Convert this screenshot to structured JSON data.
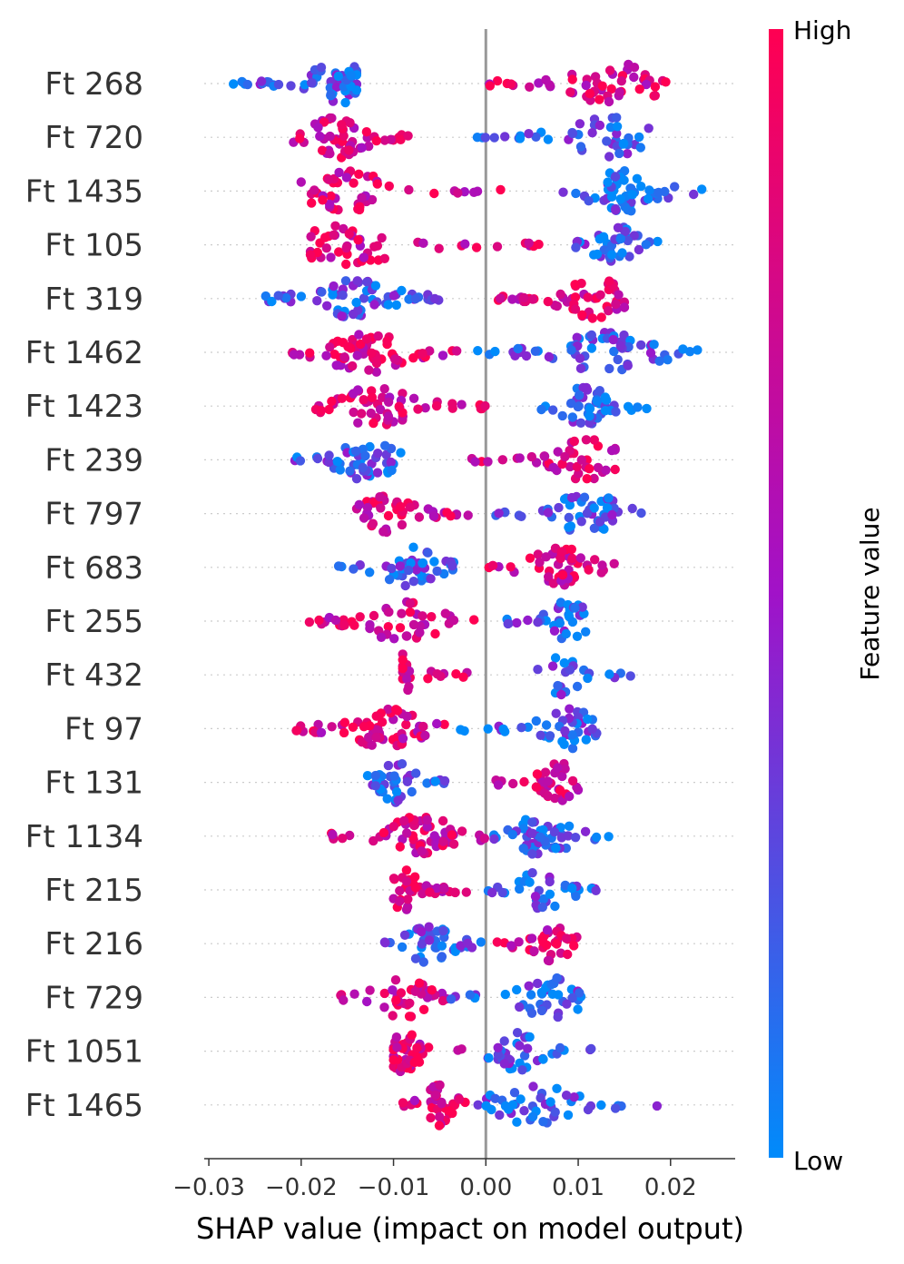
{
  "chart_data": {
    "type": "scatter",
    "subtype": "shap_beeswarm",
    "xlabel": "SHAP value (impact on model output)",
    "xlim": [
      -0.0305,
      0.027
    ],
    "xticks": [
      {
        "value": -0.03,
        "label": "−0.03"
      },
      {
        "value": -0.02,
        "label": "−0.02"
      },
      {
        "value": -0.01,
        "label": "−0.01"
      },
      {
        "value": 0.0,
        "label": "0.00"
      },
      {
        "value": 0.01,
        "label": "0.01"
      },
      {
        "value": 0.02,
        "label": "0.02"
      }
    ],
    "colorbar": {
      "title": "Feature value",
      "high_label": "High",
      "low_label": "Low",
      "high_color": "#ff0052",
      "low_color": "#008bfb"
    },
    "features": [
      {
        "name": "Ft 268",
        "neg": [
          -0.029,
          -0.014,
          "low",
          62
        ],
        "pos": [
          0.0,
          0.022,
          "high",
          52
        ],
        "peaks": [
          -0.016,
          0.014
        ]
      },
      {
        "name": "Ft 720",
        "neg": [
          -0.021,
          -0.007,
          "high",
          52
        ],
        "pos": [
          -0.002,
          0.018,
          "low",
          44
        ],
        "peaks": [
          -0.016,
          0.013
        ]
      },
      {
        "name": "Ft 1435",
        "neg": [
          -0.02,
          0.002,
          "high",
          46
        ],
        "pos": [
          0.008,
          0.024,
          "low",
          56
        ],
        "peaks": [
          -0.015,
          0.015
        ]
      },
      {
        "name": "Ft 105",
        "neg": [
          -0.019,
          0.006,
          "high",
          50
        ],
        "pos": [
          0.009,
          0.019,
          "low",
          40
        ],
        "peaks": [
          -0.015,
          0.014
        ]
      },
      {
        "name": "Ft 319",
        "neg": [
          -0.024,
          -0.005,
          "low",
          64
        ],
        "pos": [
          0.0,
          0.015,
          "high",
          56
        ],
        "peaks": [
          -0.014,
          0.012
        ]
      },
      {
        "name": "Ft 1462",
        "neg": [
          -0.021,
          -0.003,
          "high",
          66
        ],
        "pos": [
          -0.001,
          0.023,
          "low",
          64
        ],
        "peaks": [
          -0.013,
          0.013
        ]
      },
      {
        "name": "Ft 1423",
        "neg": [
          -0.019,
          0.0,
          "high",
          56
        ],
        "pos": [
          0.006,
          0.018,
          "low",
          44
        ],
        "peaks": [
          -0.012,
          0.011
        ]
      },
      {
        "name": "Ft 239",
        "neg": [
          -0.021,
          -0.008,
          "low",
          48
        ],
        "pos": [
          -0.002,
          0.014,
          "high",
          44
        ],
        "peaks": [
          -0.013,
          0.011
        ]
      },
      {
        "name": "Ft 797",
        "neg": [
          -0.014,
          0.0,
          "high",
          42
        ],
        "pos": [
          0.001,
          0.017,
          "low",
          48
        ],
        "peaks": [
          -0.011,
          0.011
        ]
      },
      {
        "name": "Ft 683",
        "neg": [
          -0.016,
          -0.003,
          "low",
          46
        ],
        "pos": [
          0.0,
          0.014,
          "high",
          44
        ],
        "peaks": [
          -0.008,
          0.008
        ]
      },
      {
        "name": "Ft 255",
        "neg": [
          -0.02,
          -0.001,
          "high",
          48
        ],
        "pos": [
          0.001,
          0.011,
          "low",
          36
        ],
        "peaks": [
          -0.009,
          0.009
        ]
      },
      {
        "name": "Ft 432",
        "neg": [
          -0.009,
          -0.002,
          "high",
          22
        ],
        "pos": [
          0.005,
          0.016,
          "low",
          22
        ],
        "peaks": [
          -0.009,
          0.008
        ]
      },
      {
        "name": "Ft 97",
        "neg": [
          -0.021,
          -0.003,
          "high",
          60
        ],
        "pos": [
          -0.003,
          0.012,
          "low",
          44
        ],
        "peaks": [
          -0.011,
          0.009
        ]
      },
      {
        "name": "Ft 131",
        "neg": [
          -0.013,
          -0.003,
          "low",
          38
        ],
        "pos": [
          0.001,
          0.01,
          "high",
          36
        ],
        "peaks": [
          -0.01,
          0.008
        ]
      },
      {
        "name": "Ft 1134",
        "neg": [
          -0.017,
          0.0,
          "high",
          62
        ],
        "pos": [
          0.0,
          0.014,
          "low",
          52
        ],
        "peaks": [
          -0.007,
          0.006
        ]
      },
      {
        "name": "Ft 215",
        "neg": [
          -0.01,
          -0.002,
          "high",
          36
        ],
        "pos": [
          0.0,
          0.012,
          "low",
          36
        ],
        "peaks": [
          -0.009,
          0.006
        ]
      },
      {
        "name": "Ft 216",
        "neg": [
          -0.011,
          0.0,
          "low",
          42
        ],
        "pos": [
          0.0,
          0.011,
          "high",
          34
        ],
        "peaks": [
          -0.006,
          0.007
        ]
      },
      {
        "name": "Ft 729",
        "neg": [
          -0.016,
          -0.004,
          "high",
          40
        ],
        "pos": [
          -0.004,
          0.011,
          "low",
          40
        ],
        "peaks": [
          -0.009,
          0.007
        ]
      },
      {
        "name": "Ft 1051",
        "neg": [
          -0.01,
          -0.001,
          "high",
          44
        ],
        "pos": [
          0.0,
          0.012,
          "low",
          40
        ],
        "peaks": [
          -0.009,
          0.003
        ]
      },
      {
        "name": "Ft 1465",
        "neg": [
          -0.009,
          -0.002,
          "high",
          34
        ],
        "pos": [
          -0.002,
          0.019,
          "low",
          44
        ],
        "peaks": [
          -0.005,
          0.005
        ]
      }
    ]
  }
}
